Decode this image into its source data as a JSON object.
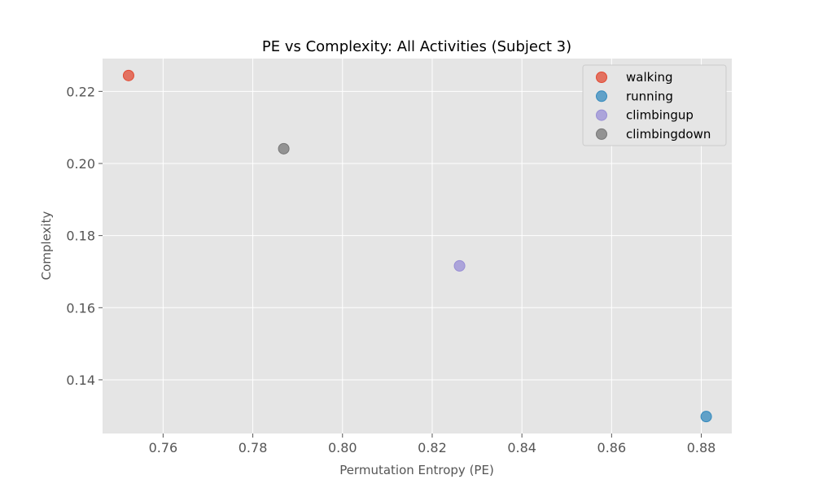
{
  "chart_data": {
    "type": "scatter",
    "title": "PE vs Complexity: All Activities (Subject 3)",
    "xlabel": "Permutation Entropy (PE)",
    "ylabel": "Complexity",
    "xlim": [
      0.7465,
      0.8868
    ],
    "ylim": [
      0.1251,
      0.2291
    ],
    "xticks": [
      0.76,
      0.78,
      0.8,
      0.82,
      0.84,
      0.86,
      0.88
    ],
    "xtick_labels": [
      "0.76",
      "0.78",
      "0.80",
      "0.82",
      "0.84",
      "0.86",
      "0.88"
    ],
    "yticks": [
      0.14,
      0.16,
      0.18,
      0.2,
      0.22
    ],
    "ytick_labels": [
      "0.14",
      "0.16",
      "0.18",
      "0.20",
      "0.22"
    ],
    "grid": true,
    "legend_position": "top-right",
    "series": [
      {
        "name": "walking",
        "color": "#E24A33",
        "points": [
          {
            "x": 0.7523,
            "y": 0.2244
          }
        ]
      },
      {
        "name": "running",
        "color": "#348ABD",
        "points": [
          {
            "x": 0.8811,
            "y": 0.1298
          }
        ]
      },
      {
        "name": "climbingup",
        "color": "#988ED5",
        "points": [
          {
            "x": 0.8261,
            "y": 0.1716
          }
        ]
      },
      {
        "name": "climbingdown",
        "color": "#777777",
        "points": [
          {
            "x": 0.7869,
            "y": 0.2041
          }
        ]
      }
    ]
  }
}
